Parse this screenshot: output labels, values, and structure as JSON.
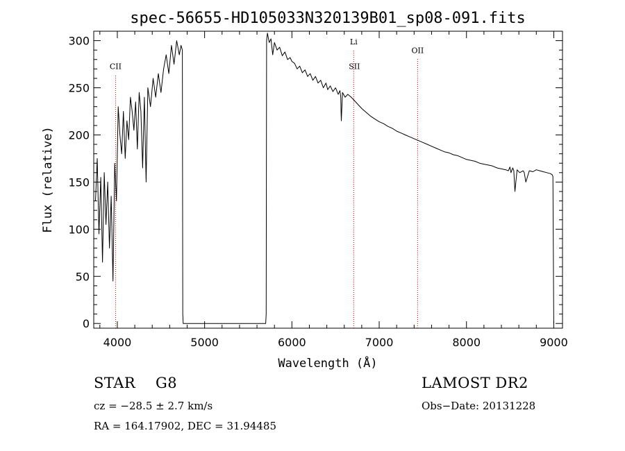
{
  "chart_data": {
    "type": "line",
    "title": "spec-56655-HD105033N320139B01_sp08-091.fits",
    "xlabel": "Wavelength (Å)",
    "ylabel": "Flux (relative)",
    "xlim": [
      3730,
      9100
    ],
    "ylim": [
      -5,
      310
    ],
    "xticks": [
      4000,
      5000,
      6000,
      7000,
      8000,
      9000
    ],
    "yticks": [
      0,
      50,
      100,
      150,
      200,
      250,
      300
    ],
    "grid": false,
    "series": [
      {
        "color": "#000000",
        "x": [
          3750,
          3770,
          3790,
          3810,
          3830,
          3850,
          3870,
          3890,
          3910,
          3930,
          3950,
          3970,
          3990,
          4010,
          4030,
          4050,
          4070,
          4090,
          4110,
          4130,
          4150,
          4170,
          4190,
          4210,
          4230,
          4250,
          4270,
          4290,
          4310,
          4330,
          4350,
          4380,
          4410,
          4440,
          4470,
          4500,
          4530,
          4560,
          4590,
          4620,
          4650,
          4680,
          4710,
          4730,
          4745,
          4750,
          4755,
          4765,
          4780,
          5700,
          5705,
          5710,
          5720,
          5740,
          5760,
          5780,
          5800,
          5830,
          5860,
          5890,
          5920,
          5950,
          5980,
          6000,
          6030,
          6060,
          6090,
          6120,
          6150,
          6180,
          6210,
          6240,
          6270,
          6300,
          6330,
          6360,
          6390,
          6410,
          6440,
          6470,
          6500,
          6530,
          6550,
          6560,
          6563,
          6566,
          6580,
          6610,
          6640,
          6680,
          6720,
          6760,
          6800,
          6850,
          6900,
          6950,
          7000,
          7050,
          7100,
          7150,
          7200,
          7250,
          7300,
          7350,
          7400,
          7450,
          7500,
          7550,
          7600,
          7650,
          7700,
          7750,
          7800,
          7850,
          7900,
          7950,
          8000,
          8050,
          8100,
          8150,
          8200,
          8250,
          8300,
          8350,
          8400,
          8450,
          8480,
          8498,
          8510,
          8530,
          8542,
          8555,
          8580,
          8610,
          8650,
          8662,
          8680,
          8720,
          8760,
          8800,
          8840,
          8880,
          8920,
          8960,
          8980,
          8990,
          8995,
          9000
        ],
        "y": [
          130,
          175,
          95,
          155,
          65,
          160,
          105,
          150,
          80,
          135,
          45,
          170,
          130,
          230,
          200,
          180,
          225,
          175,
          215,
          195,
          240,
          225,
          205,
          235,
          185,
          245,
          225,
          165,
          240,
          150,
          250,
          230,
          260,
          240,
          265,
          245,
          270,
          285,
          265,
          295,
          275,
          300,
          285,
          295,
          290,
          10,
          0,
          0,
          0,
          0,
          10,
          300,
          308,
          298,
          302,
          285,
          298,
          290,
          293,
          284,
          288,
          280,
          282,
          278,
          276,
          270,
          273,
          266,
          269,
          262,
          265,
          258,
          262,
          255,
          258,
          250,
          255,
          248,
          252,
          246,
          250,
          243,
          247,
          240,
          225,
          215,
          245,
          240,
          243,
          240,
          236,
          232,
          228,
          224,
          220,
          217,
          214,
          212,
          209,
          207,
          204,
          202,
          200,
          198,
          196,
          194,
          192,
          190,
          188,
          186,
          184,
          182,
          181,
          179,
          178,
          176,
          174,
          173,
          172,
          170,
          169,
          168,
          167,
          165,
          164,
          163,
          162,
          166,
          160,
          165,
          162,
          140,
          163,
          160,
          162,
          160,
          150,
          162,
          161,
          163,
          162,
          161,
          160,
          159,
          158,
          156,
          80,
          0
        ]
      }
    ],
    "line_markers": [
      {
        "label": "CII",
        "x": 3980,
        "y_label": 270
      },
      {
        "label": "Li",
        "x": 6708,
        "y_label": 296
      },
      {
        "label": "SII",
        "x": 6716,
        "y_label": 270
      },
      {
        "label": "OII",
        "x": 7440,
        "y_label": 287
      }
    ],
    "marker_color": "#cc0000"
  },
  "info": {
    "class_label": "STAR",
    "subclass": "G8",
    "survey": "LAMOST DR2",
    "cz": "cz = −28.5 ± 2.7 km/s",
    "obs_date": "Obs−Date: 20131228",
    "coords": "RA = 164.17902, DEC =  31.94485"
  }
}
